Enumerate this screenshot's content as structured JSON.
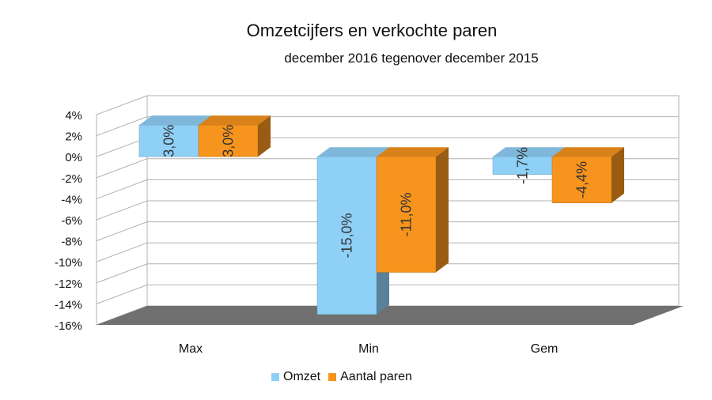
{
  "colors": {
    "omzet": "#8fd0f7",
    "aantal": "#f7941d",
    "floor": "#707070",
    "grid": "#b0b0b0"
  },
  "chart_data": {
    "type": "bar",
    "title": "Omzetcijfers en verkochte paren",
    "subtitle": "december 2016 tegenover december 2015",
    "categories": [
      "Max",
      "Min",
      "Gem"
    ],
    "series": [
      {
        "name": "Omzet",
        "values": [
          3.0,
          -15.0,
          -1.7
        ],
        "labels": [
          "3,0%",
          "-15,0%",
          "-1,7%"
        ]
      },
      {
        "name": "Aantal paren",
        "values": [
          3.0,
          -11.0,
          -4.4
        ],
        "labels": [
          "3,0%",
          "-11,0%",
          "-4,4%"
        ]
      }
    ],
    "ylim": [
      -16,
      4
    ],
    "yticks": [
      4,
      2,
      0,
      -2,
      -4,
      -6,
      -8,
      -10,
      -12,
      -14,
      -16
    ],
    "ytick_labels": [
      "4%",
      "2%",
      "0%",
      "-2%",
      "-4%",
      "-6%",
      "-8%",
      "-10%",
      "-12%",
      "-14%",
      "-16%"
    ],
    "grid": true,
    "legend": "bottom"
  }
}
